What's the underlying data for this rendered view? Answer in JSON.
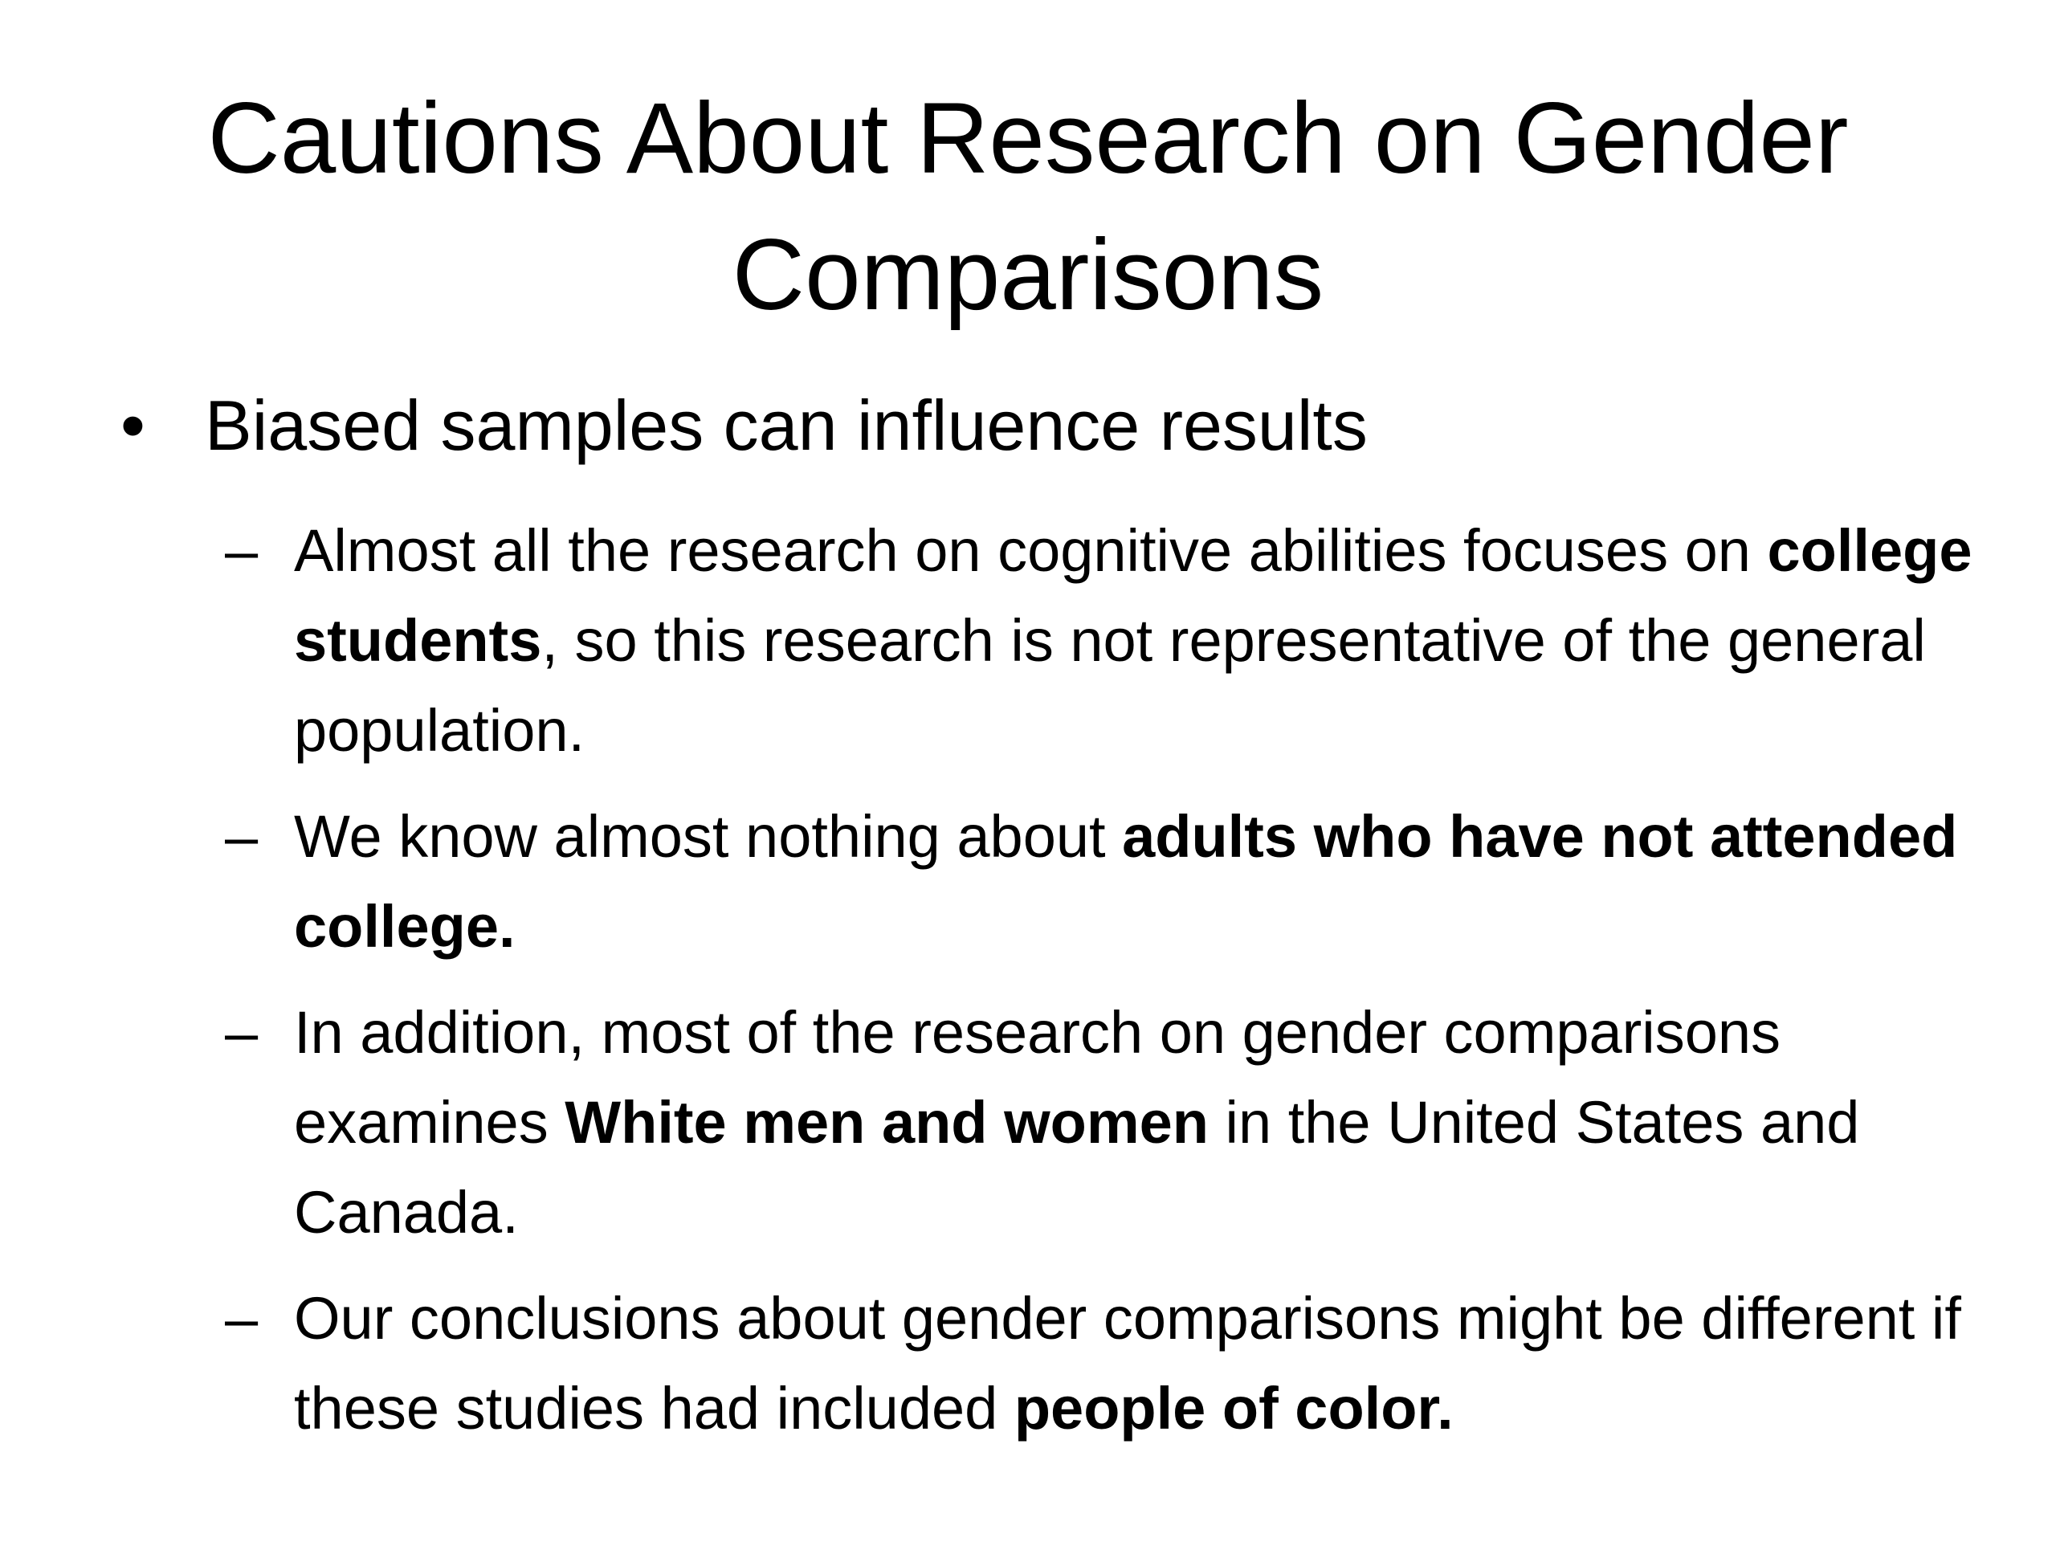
{
  "slide": {
    "title_lines": [
      "Cautions About Research on Gender",
      "Comparisons"
    ],
    "bullet": {
      "marker": "•",
      "text": "Biased samples can influence results"
    },
    "subitems": [
      {
        "marker": "–",
        "parts": [
          {
            "text": "Almost all the research on cognitive abilities focuses on ",
            "bold": false
          },
          {
            "text": "college students",
            "bold": true
          },
          {
            "text": ", so this research is not representative of the general population.",
            "bold": false
          }
        ]
      },
      {
        "marker": "–",
        "parts": [
          {
            "text": "We know almost nothing about ",
            "bold": false
          },
          {
            "text": "adults who have not attended college.",
            "bold": true
          }
        ]
      },
      {
        "marker": "–",
        "parts": [
          {
            "text": "In addition, most of the research on gender comparisons examines ",
            "bold": false
          },
          {
            "text": "White men and women",
            "bold": true
          },
          {
            "text": " in the United States and Canada.",
            "bold": false
          }
        ]
      },
      {
        "marker": "–",
        "parts": [
          {
            "text": "Our conclusions about gender comparisons might be different if these studies had included ",
            "bold": false
          },
          {
            "text": "people of color.",
            "bold": true
          }
        ]
      }
    ]
  }
}
